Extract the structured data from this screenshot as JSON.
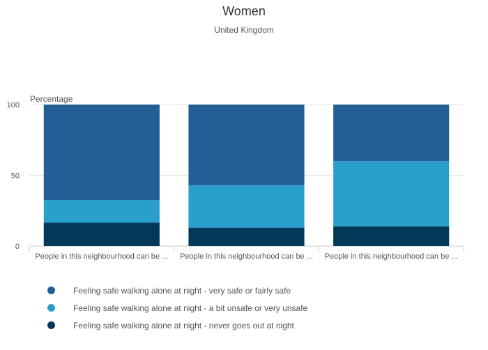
{
  "chart_data": {
    "type": "bar",
    "stacked": true,
    "title": "Women",
    "subtitle": "United Kingdom",
    "ylabel": "Percentage",
    "ylim": [
      0,
      100
    ],
    "yticks": [
      "0",
      "50",
      "100"
    ],
    "grid": true,
    "legend_position": "bottom",
    "categories": [
      "People in this neighbourhood can be ...",
      "People in this neighbourhood can be ...",
      "People in this neighbourhood can be ..."
    ],
    "series": [
      {
        "name": "Feeling safe walking alone at night - never goes out at night",
        "color": "#023858",
        "values": [
          16.5,
          13,
          14
        ]
      },
      {
        "name": "Feeling safe walking alone at night - a bit unsafe or very unsafe",
        "color": "#2a9fcc",
        "values": [
          16,
          30,
          46
        ]
      },
      {
        "name": "Feeling safe walking alone at night - very safe or fairly safe",
        "color": "#225f96",
        "values": [
          67.5,
          57,
          40
        ]
      }
    ]
  },
  "legend": {
    "items": [
      {
        "label": "Feeling safe walking alone at night - very safe or fairly safe",
        "color": "#225f96"
      },
      {
        "label": "Feeling safe walking alone at night - a bit unsafe or very unsafe",
        "color": "#2a9fcc"
      },
      {
        "label": "Feeling safe walking alone at night - never goes out at night",
        "color": "#023858"
      }
    ]
  }
}
